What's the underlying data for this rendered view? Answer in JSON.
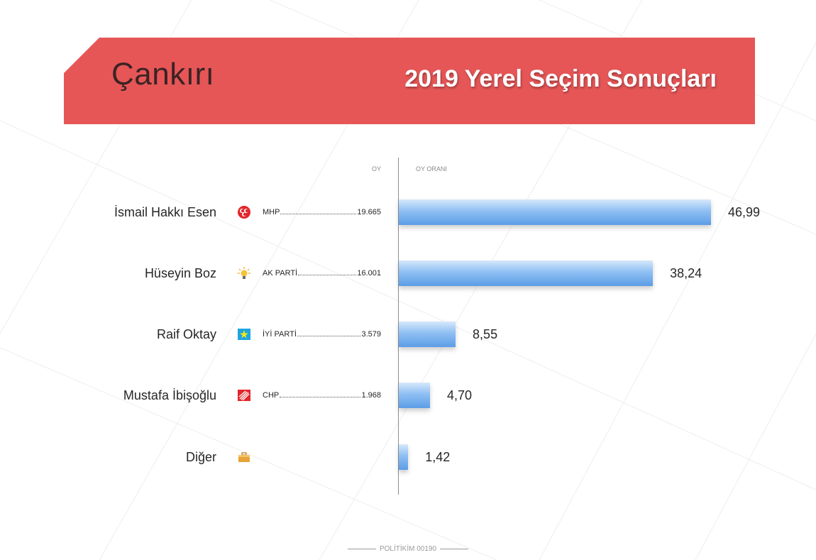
{
  "header": {
    "province": "Çankırı",
    "title": "2019 Yerel Seçim Sonuçları"
  },
  "columns": {
    "votes": "OY",
    "share": "OY ORANI"
  },
  "chart_data": {
    "type": "bar",
    "orientation": "horizontal",
    "categories": [
      "İsmail Hakkı Esen",
      "Hüseyin Boz",
      "Raif Oktay",
      "Mustafa İbişoğlu",
      "Diğer"
    ],
    "series": [
      {
        "name": "OY ORANI",
        "values": [
          46.99,
          38.24,
          8.55,
          4.7,
          1.42
        ]
      }
    ],
    "value_labels": [
      "46,99",
      "38,24",
      "8,55",
      "4,70",
      "1,42"
    ],
    "xlim": [
      0,
      50
    ],
    "grid": false,
    "bar_color": "#5b9de6"
  },
  "rows": [
    {
      "name": "İsmail Hakkı Esen",
      "party": "MHP",
      "votes": "19.665",
      "icon": "mhp-crescents-icon",
      "icon_color": "#e2262b"
    },
    {
      "name": "Hüseyin Boz",
      "party": "AK PARTİ",
      "votes": "16.001",
      "icon": "light-bulb-icon",
      "icon_color": "#f6a21a"
    },
    {
      "name": "Raif Oktay",
      "party": "İYİ PARTİ",
      "votes": "3.579",
      "icon": "star-icon",
      "icon_color": "#1da5de"
    },
    {
      "name": "Mustafa İbişoğlu",
      "party": "CHP",
      "votes": "1.968",
      "icon": "six-arrows-icon",
      "icon_color": "#e2262b"
    },
    {
      "name": "Diğer",
      "party": "",
      "votes": "",
      "icon": "briefcase-icon",
      "icon_color": "#e8a33a"
    }
  ],
  "footer": {
    "text": "POLİTİKİM 00190"
  },
  "colors": {
    "banner": "#e65657",
    "province_text": "#3b2324",
    "title_text": "#ffffff"
  }
}
